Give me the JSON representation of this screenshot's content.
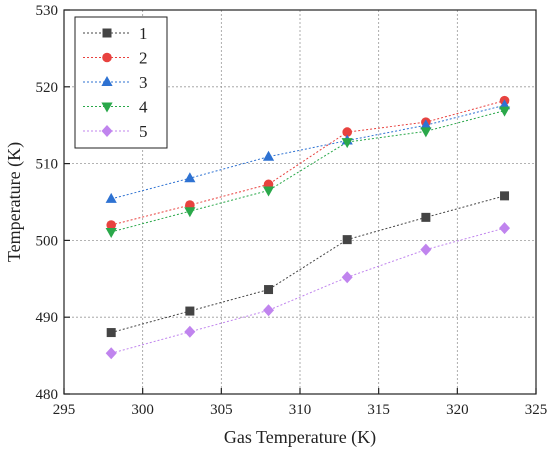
{
  "chart_data": {
    "type": "line",
    "title": "",
    "xlabel": "Gas Temperature (K)",
    "ylabel": "Temperature (K)",
    "xlim": [
      295,
      325
    ],
    "ylim": [
      480,
      530
    ],
    "xticks": [
      295,
      300,
      305,
      310,
      315,
      320,
      325
    ],
    "yticks": [
      480,
      490,
      500,
      510,
      520,
      530
    ],
    "xtick_labels": [
      "295",
      "300",
      "305",
      "310",
      "315",
      "320",
      "325"
    ],
    "ytick_labels": [
      "480",
      "490",
      "500",
      "510",
      "520",
      "530"
    ],
    "grid": true,
    "legend_position": "top-left",
    "x": [
      298,
      303,
      308,
      313,
      318,
      323
    ],
    "series": [
      {
        "name": "1",
        "color": "#444444",
        "marker": "square",
        "values": [
          488.0,
          490.8,
          493.6,
          500.1,
          503.0,
          505.8
        ]
      },
      {
        "name": "2",
        "color": "#e8423f",
        "marker": "circle",
        "values": [
          502.0,
          504.6,
          507.3,
          514.1,
          515.4,
          518.2
        ]
      },
      {
        "name": "3",
        "color": "#2e72d2",
        "marker": "triangle-up",
        "values": [
          505.4,
          508.1,
          510.9,
          513.0,
          515.0,
          517.6
        ]
      },
      {
        "name": "4",
        "color": "#2aa84a",
        "marker": "triangle-down",
        "values": [
          501.1,
          503.8,
          506.5,
          512.8,
          514.2,
          516.9
        ]
      },
      {
        "name": "5",
        "color": "#c084ee",
        "marker": "diamond",
        "values": [
          485.3,
          488.1,
          490.9,
          495.2,
          498.8,
          501.6
        ]
      }
    ]
  }
}
